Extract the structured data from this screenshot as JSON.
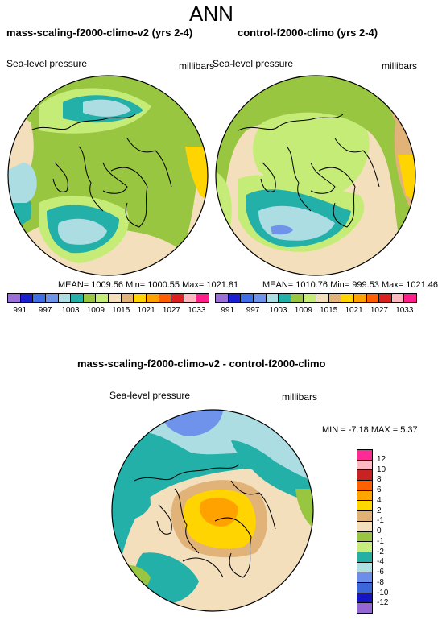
{
  "figure": {
    "title": "ANN"
  },
  "panels": [
    {
      "title": "mass-scaling-f2000-climo-v2 (yrs 2-4)",
      "variable": "Sea-level pressure",
      "units": "millibars",
      "stats": {
        "mean": "1009.56",
        "min": "1000.55",
        "max": "1021.81"
      },
      "stats_text": "MEAN= 1009.56  Min= 1000.55  Max= 1021.81"
    },
    {
      "title": "control-f2000-climo (yrs 2-4)",
      "variable": "Sea-level pressure",
      "units": "millibars",
      "stats": {
        "mean": "1010.76",
        "min": "999.53",
        "max": "1021.46"
      },
      "stats_text": "MEAN= 1010.76  Min= 999.53  Max= 1021.46"
    },
    {
      "title": "mass-scaling-f2000-climo-v2 - control-f2000-climo",
      "variable": "Sea-level pressure",
      "units": "millibars",
      "stats": {
        "min": "-7.18",
        "max": "5.37"
      },
      "stats_text": "MIN =  -7.18 MAX =   5.37"
    }
  ],
  "colorbars": {
    "absolute": {
      "colors": [
        "#9B6FD8",
        "#1C1FD1",
        "#3F6FE6",
        "#6F93EB",
        "#ABDDE3",
        "#22B0A8",
        "#99C641",
        "#C6EC78",
        "#F3DFBB",
        "#E1B378",
        "#FFD400",
        "#FFA200",
        "#FF5F00",
        "#DC1F1F",
        "#FFB8C0",
        "#FF1E8C"
      ],
      "tick_labels": [
        "991",
        "997",
        "1003",
        "1009",
        "1015",
        "1021",
        "1027",
        "1033"
      ]
    },
    "difference": {
      "colors_top_to_bottom": [
        "#FF2A93",
        "#FFB9C1",
        "#C92222",
        "#FF6100",
        "#FFA500",
        "#FFD700",
        "#E0B276",
        "#F4DFBD",
        "#9AC542",
        "#C7ED7C",
        "#25B0A6",
        "#ADDFE3",
        "#6A8EE9",
        "#3B67DA",
        "#1515C4",
        "#9566D4"
      ],
      "tick_labels": [
        "12",
        "10",
        "8",
        "6",
        "4",
        "2",
        "-1",
        "0",
        "-1",
        "-2",
        "-4",
        "-6",
        "-8",
        "-10",
        "-12"
      ]
    }
  }
}
